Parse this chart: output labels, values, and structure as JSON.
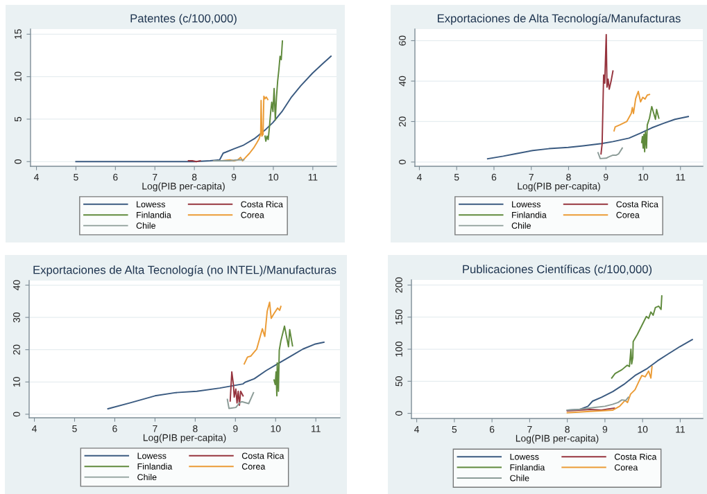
{
  "chart_data": [
    {
      "type": "line",
      "title": "Patentes (c/100,000)",
      "xlabel": "Log(PIB per-capita)",
      "xlim": [
        3.85,
        11.6
      ],
      "xticks": [
        4,
        5,
        6,
        7,
        8,
        9,
        10,
        11
      ],
      "ylim": [
        -0.55,
        15.6
      ],
      "yticks": [
        0,
        5,
        10,
        15
      ],
      "grid": "y",
      "legend": "bottom",
      "series": [
        {
          "name": "Lowess",
          "color": "#3a5a80",
          "x": [
            5.0,
            6.0,
            7.0,
            8.0,
            8.4,
            8.64,
            8.73,
            8.79,
            9.0,
            9.23,
            9.52,
            9.81,
            9.99,
            10.22,
            10.46,
            10.69,
            10.99,
            11.22,
            11.46
          ],
          "values": [
            0,
            0,
            0,
            0,
            0.1,
            0.2,
            1.0,
            1.1,
            1.5,
            1.9,
            2.7,
            3.8,
            4.6,
            5.9,
            7.6,
            8.9,
            10.4,
            11.4,
            12.4
          ]
        },
        {
          "name": "Costa Rica",
          "color": "#96343e",
          "x": [
            7.85,
            7.95,
            8.05,
            8.15
          ],
          "values": [
            0.1,
            0.1,
            0.0,
            0.1
          ]
        },
        {
          "name": "Finlandia",
          "color": "#5f8a3c",
          "x": [
            9.79,
            9.81,
            9.84,
            9.87,
            9.9,
            9.93,
            9.96,
            9.99,
            10.02,
            10.05,
            10.08,
            10.11,
            10.14,
            10.17,
            10.2,
            10.23
          ],
          "values": [
            3.0,
            2.4,
            3.0,
            2.6,
            4.0,
            5.7,
            7.0,
            5.9,
            8.6,
            4.9,
            7.6,
            9.5,
            10.8,
            12.4,
            12.0,
            14.2
          ]
        },
        {
          "name": "Corea",
          "color": "#eb9b35",
          "x": [
            8.5,
            8.7,
            8.9,
            9.0,
            9.1,
            9.17,
            9.22,
            9.3,
            9.4,
            9.5,
            9.58,
            9.64,
            9.68,
            9.69,
            9.71,
            9.74,
            9.76,
            9.79,
            9.82,
            9.86
          ],
          "values": [
            0.1,
            0.1,
            0.2,
            0.1,
            0.2,
            0.5,
            0.1,
            0.5,
            1.0,
            1.6,
            2.2,
            2.7,
            3.3,
            7.2,
            3.0,
            3.2,
            7.7,
            7.4,
            7.6,
            7.3
          ]
        },
        {
          "name": "Chile",
          "color": "#8c9c98",
          "x": [
            8.5,
            8.7,
            8.9,
            9.1,
            9.25
          ],
          "values": [
            0.1,
            0.1,
            0.1,
            0.2,
            0.2
          ]
        }
      ]
    },
    {
      "type": "line",
      "title": "Exportaciones de Alta Tecnología/Manufacturas",
      "xlabel": "Log(PIB per-capita)",
      "xlim": [
        3.88,
        11.6
      ],
      "xticks": [
        4,
        5,
        6,
        7,
        8,
        9,
        10,
        11
      ],
      "ylim": [
        -2.1,
        65.7
      ],
      "yticks": [
        0,
        20,
        40,
        60
      ],
      "grid": "y",
      "legend": "bottom",
      "series": [
        {
          "name": "Lowess",
          "color": "#3a5a80",
          "x": [
            5.83,
            6.25,
            6.55,
            7.04,
            7.47,
            7.99,
            8.39,
            8.88,
            9.19,
            9.62,
            9.93,
            10.23,
            10.54,
            10.85,
            11.21
          ],
          "values": [
            1.6,
            2.9,
            4.0,
            5.7,
            6.6,
            7.2,
            8.0,
            9.1,
            10.1,
            11.8,
            14.3,
            16.9,
            19.1,
            21.1,
            22.5
          ]
        },
        {
          "name": "Costa Rica",
          "color": "#96343e",
          "x": [
            8.87,
            8.9,
            8.94,
            8.97,
            9.01,
            9.03,
            9.06,
            9.09,
            9.14,
            9.19
          ],
          "values": [
            4,
            9,
            43,
            39,
            63,
            37,
            41,
            36,
            40,
            45
          ]
        },
        {
          "name": "Finlandia",
          "color": "#5f8a3c",
          "x": [
            9.96,
            9.98,
            10.0,
            10.02,
            10.04,
            10.06,
            10.09,
            10.11,
            10.17,
            10.23,
            10.33,
            10.36,
            10.42
          ],
          "values": [
            9.7,
            12.6,
            6.9,
            13.7,
            5.1,
            14.9,
            6.9,
            18.3,
            21.7,
            27.4,
            21.1,
            26,
            21.7
          ]
        },
        {
          "name": "Corea",
          "color": "#eb9b35",
          "x": [
            9.22,
            9.25,
            9.37,
            9.56,
            9.68,
            9.71,
            9.74,
            9.8,
            9.87,
            9.93,
            9.99,
            10.05,
            10.11,
            10.17
          ],
          "values": [
            15.4,
            17.4,
            18.3,
            20,
            24,
            26.9,
            24,
            31.4,
            34.9,
            29.7,
            32,
            31.1,
            33.1,
            33.4
          ]
        },
        {
          "name": "Chile",
          "color": "#8c9c98",
          "x": [
            8.79,
            8.85,
            9.01,
            9.07,
            9.19,
            9.28,
            9.34,
            9.44
          ],
          "values": [
            4.6,
            1.7,
            1.9,
            2.5,
            3.4,
            3.4,
            4.0,
            6.9
          ]
        }
      ]
    },
    {
      "type": "line",
      "title": "Exportaciones de Alta Tecnología (no INTEL)/Manufacturas",
      "xlabel": "Log(PIB per-capita)",
      "xlim": [
        3.87,
        11.6
      ],
      "xticks": [
        4,
        5,
        6,
        7,
        8,
        9,
        10,
        11
      ],
      "ylim": [
        -1.1,
        41.4
      ],
      "yticks": [
        0,
        10,
        20,
        30,
        40
      ],
      "grid": "y",
      "legend": "bottom",
      "series": [
        {
          "name": "Lowess",
          "color": "#3a5a80",
          "x": [
            5.83,
            6.37,
            7.0,
            7.52,
            8.04,
            8.61,
            9.19,
            9.24,
            9.47,
            9.76,
            10.05,
            10.39,
            10.68,
            10.97,
            11.2
          ],
          "values": [
            1.7,
            3.5,
            5.7,
            6.7,
            7.1,
            8.1,
            9.4,
            9.9,
            11.0,
            13.5,
            15.6,
            18.1,
            20.2,
            21.7,
            22.3
          ]
        },
        {
          "name": "Costa Rica",
          "color": "#96343e",
          "x": [
            8.87,
            8.91,
            8.95,
            8.97,
            9.01,
            9.04,
            9.07,
            9.1,
            9.13,
            9.19
          ],
          "values": [
            4.1,
            13.1,
            9.2,
            5.3,
            7.8,
            3.5,
            7.1,
            2.8,
            7.1,
            5.7
          ]
        },
        {
          "name": "Finlandia",
          "color": "#5f8a3c",
          "x": [
            9.96,
            9.99,
            10.01,
            10.03,
            10.04,
            10.07,
            10.09,
            10.13,
            10.22,
            10.32,
            10.35,
            10.42
          ],
          "values": [
            10.6,
            9.2,
            13.1,
            5.7,
            15.9,
            7.1,
            19.8,
            22.7,
            27.3,
            20.9,
            26.2,
            21.2
          ]
        },
        {
          "name": "Corea",
          "color": "#eb9b35",
          "x": [
            9.22,
            9.3,
            9.38,
            9.53,
            9.67,
            9.73,
            9.79,
            9.85,
            9.89,
            9.96,
            10.05,
            10.1,
            10.13
          ],
          "values": [
            15.6,
            17.7,
            18.0,
            20.2,
            26.5,
            24.1,
            31.9,
            34.7,
            29.7,
            31.2,
            32.9,
            32.2,
            33.4
          ]
        },
        {
          "name": "Chile",
          "color": "#8c9c98",
          "x": [
            8.8,
            8.84,
            9.01,
            9.1,
            9.16,
            9.33,
            9.45
          ],
          "values": [
            4.6,
            1.8,
            2.1,
            3.5,
            3.9,
            3.3,
            6.7
          ]
        }
      ]
    },
    {
      "type": "line",
      "title": "Publicaciones Científicas (c/100,000)",
      "xlabel": "Log(PIB per-capita)",
      "xlim": [
        3.86,
        11.6
      ],
      "xticks": [
        4,
        5,
        6,
        7,
        8,
        9,
        10,
        11
      ],
      "ylim": [
        -8,
        208
      ],
      "yticks": [
        0,
        50,
        100,
        150,
        200
      ],
      "grid": "y",
      "legend": "bottom",
      "series": [
        {
          "name": "Lowess",
          "color": "#3a5a80",
          "x": [
            8.0,
            8.32,
            8.55,
            8.67,
            8.91,
            9.21,
            9.5,
            9.8,
            10.1,
            10.4,
            10.69,
            10.99,
            11.32
          ],
          "values": [
            5,
            6,
            11,
            19,
            25,
            34,
            45,
            59,
            69,
            82,
            93,
            104,
            115
          ]
        },
        {
          "name": "Costa Rica",
          "color": "#96343e",
          "x": [
            8.0,
            8.3,
            8.6,
            8.9,
            9.1,
            9.25
          ],
          "values": [
            4,
            5,
            6,
            5,
            7,
            8
          ]
        },
        {
          "name": "Finlandia",
          "color": "#5f8a3c",
          "x": [
            9.18,
            9.27,
            9.45,
            9.59,
            9.65,
            9.69,
            9.71,
            9.74,
            9.75,
            9.86,
            10.04,
            10.1,
            10.16,
            10.22,
            10.28,
            10.34,
            10.43,
            10.49,
            10.51
          ],
          "values": [
            55,
            62,
            68,
            75,
            73,
            100,
            77,
            87,
            112,
            123,
            144,
            151,
            148,
            158,
            153,
            165,
            167,
            162,
            183
          ]
        },
        {
          "name": "Corea",
          "color": "#eb9b35",
          "x": [
            8.0,
            8.61,
            9.21,
            9.39,
            9.53,
            9.6,
            9.68,
            9.8,
            9.92,
            9.98,
            10.07,
            10.16,
            10.22,
            10.25
          ],
          "values": [
            1,
            3,
            5,
            11,
            20,
            17,
            30,
            37,
            52,
            59,
            57,
            66,
            55,
            73
          ]
        },
        {
          "name": "Chile",
          "color": "#8c9c98",
          "x": [
            8.0,
            8.3,
            8.7,
            9.0,
            9.2,
            9.35,
            9.45,
            9.55,
            9.62
          ],
          "values": [
            5,
            6,
            9,
            11,
            14,
            17,
            21,
            20,
            25
          ]
        }
      ]
    }
  ]
}
